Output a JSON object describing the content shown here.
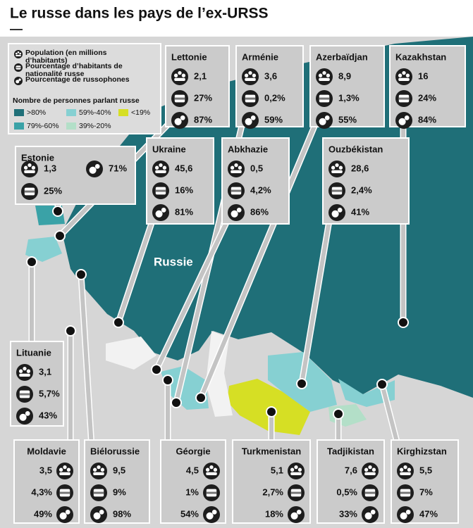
{
  "title": "Le russe dans les pays de l’ex-URSS",
  "legend": {
    "population": "Population (en millions d’habitants)",
    "nationality": "Pourcentage d’habitants de nationalité russe",
    "russophones": "Pourcentage de russophones",
    "scale_title": "Nombre de personnes parlant russe",
    "classes": [
      {
        "label": ">80%",
        "color": "#1f6f78"
      },
      {
        "label": "59%-40%",
        "color": "#86d0d2"
      },
      {
        "label": "<19%",
        "color": "#d6df24"
      },
      {
        "label": "79%-60%",
        "color": "#3aa2a7"
      },
      {
        "label": "39%-20%",
        "color": "#b3dfc8"
      }
    ]
  },
  "map_label": "Russie",
  "countries": [
    {
      "name": "Lettonie",
      "population": "2,1",
      "nationality": "27%",
      "russophones": "87%"
    },
    {
      "name": "Arménie",
      "population": "3,6",
      "nationality": "0,2%",
      "russophones": "59%"
    },
    {
      "name": "Azerbaïdjan",
      "population": "8,9",
      "nationality": "1,3%",
      "russophones": "55%"
    },
    {
      "name": "Kazakhstan",
      "population": "16",
      "nationality": "24%",
      "russophones": "84%"
    },
    {
      "name": "Estonie",
      "population": "1,3",
      "nationality": "25%",
      "russophones": "71%"
    },
    {
      "name": "Ukraine",
      "population": "45,6",
      "nationality": "16%",
      "russophones": "81%"
    },
    {
      "name": "Abkhazie",
      "population": "0,5",
      "nationality": "4,2%",
      "russophones": "86%"
    },
    {
      "name": "Ouzbékistan",
      "population": "28,6",
      "nationality": "2,4%",
      "russophones": "41%"
    },
    {
      "name": "Lituanie",
      "population": "3,1",
      "nationality": "5,7%",
      "russophones": "43%"
    },
    {
      "name": "Moldavie",
      "population": "3,5",
      "nationality": "4,3%",
      "russophones": "49%"
    },
    {
      "name": "Biélorussie",
      "population": "9,5",
      "nationality": "9%",
      "russophones": "98%"
    },
    {
      "name": "Géorgie",
      "population": "4,5",
      "nationality": "1%",
      "russophones": "54%"
    },
    {
      "name": "Turkmenistan",
      "population": "5,1",
      "nationality": "2,7%",
      "russophones": "18%"
    },
    {
      "name": "Tadjikistan",
      "population": "7,6",
      "nationality": "0,5%",
      "russophones": "33%"
    },
    {
      "name": "Kirghizstan",
      "population": "5,5",
      "nationality": "7%",
      "russophones": "47%"
    }
  ]
}
